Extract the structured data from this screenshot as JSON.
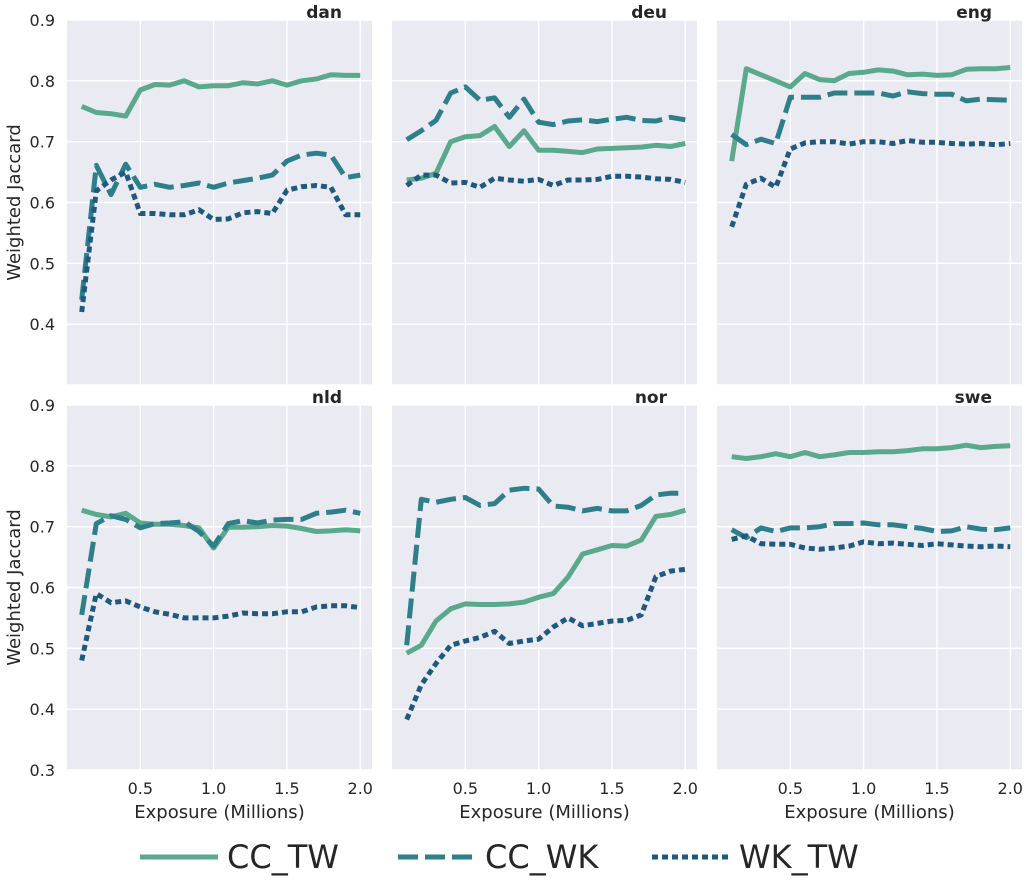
{
  "chart_data": {
    "type": "line",
    "ylabel": "Weighted Jaccard",
    "xlabel": "Exposure (Millions)",
    "xlim": [
      0.0,
      2.08
    ],
    "ylim": [
      0.3,
      0.9
    ],
    "xticks": [
      0.5,
      1.0,
      1.5,
      2.0
    ],
    "xtick_labels": [
      "0.5",
      "1.0",
      "1.5",
      "2.0"
    ],
    "yticks": [
      0.3,
      0.4,
      0.5,
      0.6,
      0.7,
      0.8,
      0.9
    ],
    "ytick_labels": [
      "0.3",
      "0.4",
      "0.5",
      "0.6",
      "0.7",
      "0.8",
      "0.9"
    ],
    "grid": true,
    "legend_position": "bottom",
    "legend": [
      {
        "name": "CC_TW",
        "color": "#5aa98c",
        "style": "solid"
      },
      {
        "name": "CC_WK",
        "color": "#2e7f8a",
        "style": "dashed"
      },
      {
        "name": "WK_TW",
        "color": "#1f5a7e",
        "style": "dotted"
      }
    ],
    "x": [
      0.1,
      0.2,
      0.3,
      0.4,
      0.5,
      0.6,
      0.7,
      0.8,
      0.9,
      1.0,
      1.1,
      1.2,
      1.3,
      1.4,
      1.5,
      1.6,
      1.7,
      1.8,
      1.9,
      2.0
    ],
    "panels": [
      {
        "title": "dan",
        "series": [
          {
            "name": "CC_TW",
            "values": [
              0.758,
              0.748,
              0.746,
              0.742,
              0.785,
              0.794,
              0.793,
              0.8,
              0.79,
              0.792,
              0.792,
              0.797,
              0.795,
              0.8,
              0.793,
              0.8,
              0.803,
              0.81,
              0.809,
              0.809
            ]
          },
          {
            "name": "CC_WK",
            "values": [
              0.44,
              0.661,
              0.613,
              0.663,
              0.625,
              0.63,
              0.625,
              0.628,
              0.632,
              0.625,
              0.632,
              0.636,
              0.64,
              0.645,
              0.668,
              0.678,
              0.681,
              0.678,
              0.641,
              0.645
            ]
          },
          {
            "name": "WK_TW",
            "values": [
              0.42,
              0.619,
              0.637,
              0.65,
              0.582,
              0.582,
              0.58,
              0.58,
              0.588,
              0.572,
              0.573,
              0.583,
              0.585,
              0.582,
              0.62,
              0.626,
              0.628,
              0.625,
              0.58,
              0.58
            ]
          }
        ]
      },
      {
        "title": "deu",
        "series": [
          {
            "name": "CC_TW",
            "values": [
              0.637,
              0.64,
              0.648,
              0.7,
              0.708,
              0.71,
              0.725,
              0.692,
              0.718,
              0.686,
              0.686,
              0.684,
              0.682,
              0.688,
              0.689,
              0.69,
              0.691,
              0.694,
              0.692,
              0.697
            ]
          },
          {
            "name": "CC_WK",
            "values": [
              0.703,
              0.718,
              0.735,
              0.78,
              0.79,
              0.768,
              0.772,
              0.74,
              0.77,
              0.732,
              0.728,
              0.734,
              0.736,
              0.733,
              0.737,
              0.74,
              0.735,
              0.734,
              0.74,
              0.736
            ]
          },
          {
            "name": "WK_TW",
            "values": [
              0.628,
              0.645,
              0.645,
              0.632,
              0.633,
              0.625,
              0.64,
              0.637,
              0.635,
              0.638,
              0.628,
              0.637,
              0.637,
              0.638,
              0.643,
              0.643,
              0.642,
              0.639,
              0.638,
              0.633
            ]
          }
        ]
      },
      {
        "title": "eng",
        "series": [
          {
            "name": "CC_TW",
            "values": [
              0.668,
              0.82,
              0.81,
              0.8,
              0.79,
              0.812,
              0.802,
              0.8,
              0.812,
              0.814,
              0.818,
              0.816,
              0.81,
              0.811,
              0.809,
              0.81,
              0.819,
              0.82,
              0.82,
              0.822
            ]
          },
          {
            "name": "CC_WK",
            "values": [
              0.712,
              0.695,
              0.704,
              0.697,
              0.773,
              0.773,
              0.773,
              0.78,
              0.78,
              0.78,
              0.78,
              0.775,
              0.782,
              0.779,
              0.778,
              0.778,
              0.767,
              0.77,
              0.769,
              0.768
            ]
          },
          {
            "name": "WK_TW",
            "values": [
              0.56,
              0.63,
              0.64,
              0.625,
              0.688,
              0.698,
              0.7,
              0.7,
              0.696,
              0.7,
              0.7,
              0.697,
              0.702,
              0.699,
              0.699,
              0.697,
              0.696,
              0.697,
              0.695,
              0.697
            ]
          }
        ]
      },
      {
        "title": "nld",
        "series": [
          {
            "name": "CC_TW",
            "values": [
              0.727,
              0.72,
              0.716,
              0.722,
              0.706,
              0.704,
              0.704,
              0.702,
              0.698,
              0.665,
              0.699,
              0.699,
              0.7,
              0.702,
              0.701,
              0.697,
              0.692,
              0.693,
              0.695,
              0.693
            ]
          },
          {
            "name": "CC_WK",
            "values": [
              0.555,
              0.705,
              0.718,
              0.712,
              0.698,
              0.705,
              0.706,
              0.708,
              0.692,
              0.668,
              0.705,
              0.71,
              0.706,
              0.711,
              0.712,
              0.712,
              0.722,
              0.724,
              0.727,
              0.722
            ]
          },
          {
            "name": "WK_TW",
            "values": [
              0.48,
              0.59,
              0.575,
              0.578,
              0.568,
              0.56,
              0.556,
              0.55,
              0.55,
              0.55,
              0.553,
              0.558,
              0.557,
              0.557,
              0.56,
              0.56,
              0.568,
              0.57,
              0.57,
              0.567
            ]
          }
        ]
      },
      {
        "title": "nor",
        "series": [
          {
            "name": "CC_TW",
            "values": [
              0.492,
              0.505,
              0.545,
              0.565,
              0.573,
              0.572,
              0.572,
              0.573,
              0.576,
              0.584,
              0.59,
              0.617,
              0.655,
              0.662,
              0.669,
              0.668,
              0.678,
              0.717,
              0.72,
              0.727
            ]
          },
          {
            "name": "CC_WK",
            "values": [
              0.505,
              0.745,
              0.74,
              0.745,
              0.748,
              0.735,
              0.738,
              0.76,
              0.763,
              0.762,
              0.734,
              0.732,
              0.726,
              0.73,
              0.726,
              0.726,
              0.735,
              0.752,
              0.755,
              0.755
            ]
          },
          {
            "name": "WK_TW",
            "values": [
              0.383,
              0.44,
              0.475,
              0.505,
              0.512,
              0.518,
              0.528,
              0.508,
              0.512,
              0.515,
              0.535,
              0.55,
              0.537,
              0.541,
              0.545,
              0.546,
              0.555,
              0.618,
              0.627,
              0.63
            ]
          }
        ]
      },
      {
        "title": "swe",
        "series": [
          {
            "name": "CC_TW",
            "values": [
              0.815,
              0.812,
              0.815,
              0.82,
              0.815,
              0.822,
              0.815,
              0.818,
              0.822,
              0.822,
              0.823,
              0.823,
              0.825,
              0.828,
              0.828,
              0.83,
              0.834,
              0.83,
              0.832,
              0.833
            ]
          },
          {
            "name": "CC_WK",
            "values": [
              0.695,
              0.682,
              0.698,
              0.692,
              0.698,
              0.698,
              0.7,
              0.705,
              0.705,
              0.706,
              0.703,
              0.703,
              0.7,
              0.697,
              0.692,
              0.693,
              0.7,
              0.696,
              0.695,
              0.698
            ]
          },
          {
            "name": "WK_TW",
            "values": [
              0.679,
              0.685,
              0.672,
              0.671,
              0.671,
              0.665,
              0.663,
              0.665,
              0.668,
              0.675,
              0.672,
              0.673,
              0.671,
              0.669,
              0.672,
              0.67,
              0.668,
              0.667,
              0.668,
              0.667
            ]
          }
        ]
      }
    ]
  }
}
